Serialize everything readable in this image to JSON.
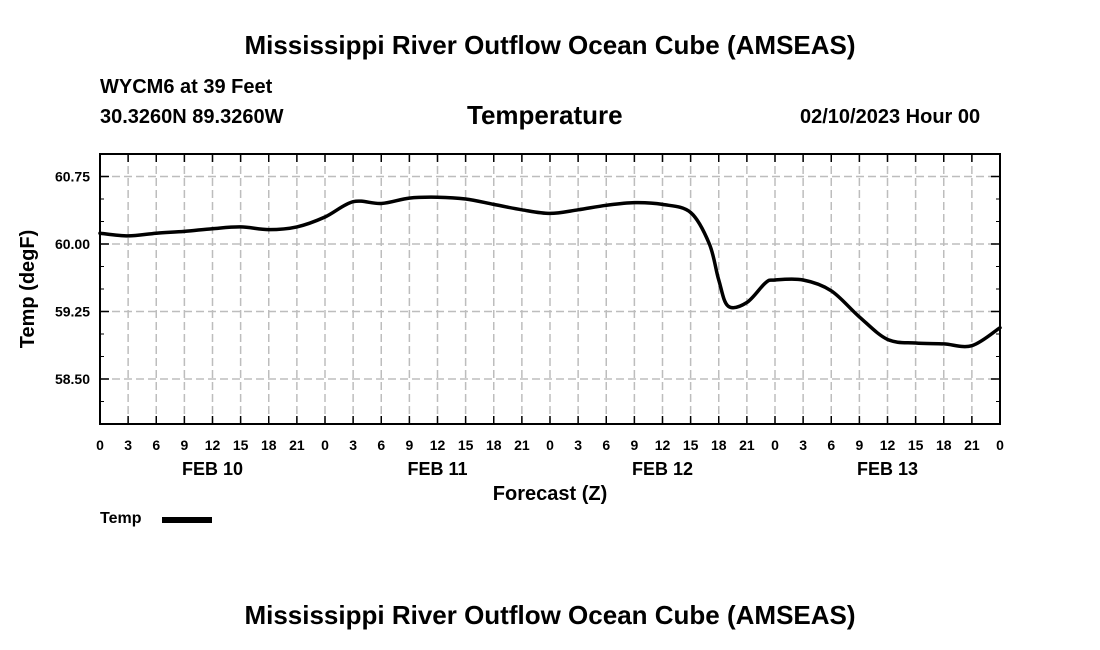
{
  "header": {
    "title_top": "Mississippi River Outflow Ocean Cube (AMSEAS)",
    "station_line": "WYCM6 at 39 Feet",
    "coords_line": "30.3260N  89.3260W",
    "subtitle": "Temperature",
    "datetime": "02/10/2023 Hour 00"
  },
  "footer": {
    "title_bottom": "Mississippi River Outflow Ocean Cube (AMSEAS)"
  },
  "legend": {
    "label": "Temp",
    "color": "#000000"
  },
  "chart_data": {
    "type": "line",
    "title": "Temperature",
    "xlabel": "Forecast (Z)",
    "ylabel": "Temp (degF)",
    "xlim": [
      0,
      96
    ],
    "ylim": [
      58.0,
      61.0
    ],
    "grid": true,
    "y_ticks": [
      "60.75",
      "60.00",
      "59.25",
      "58.50"
    ],
    "x_ticks": [
      "0",
      "3",
      "6",
      "9",
      "12",
      "15",
      "18",
      "21",
      "0",
      "3",
      "6",
      "9",
      "12",
      "15",
      "18",
      "21",
      "0",
      "3",
      "6",
      "9",
      "12",
      "15",
      "18",
      "21",
      "0",
      "3",
      "6",
      "9",
      "12",
      "15",
      "18",
      "21",
      "0"
    ],
    "days": [
      "FEB 10",
      "FEB 11",
      "FEB 12",
      "FEB 13"
    ],
    "series": [
      {
        "name": "Temp",
        "x": [
          0,
          3,
          6,
          9,
          12,
          15,
          18,
          21,
          24,
          27,
          30,
          33,
          36,
          39,
          42,
          45,
          48,
          51,
          54,
          57,
          60,
          63,
          65,
          66,
          67,
          69,
          71,
          72,
          75,
          78,
          81,
          84,
          87,
          90,
          93,
          96
        ],
        "y": [
          60.12,
          60.09,
          60.12,
          60.14,
          60.17,
          60.19,
          60.16,
          60.19,
          60.3,
          60.47,
          60.45,
          60.51,
          60.52,
          60.5,
          60.44,
          60.38,
          60.34,
          60.38,
          60.43,
          60.46,
          60.44,
          60.35,
          60.0,
          59.6,
          59.31,
          59.35,
          59.57,
          59.6,
          59.6,
          59.48,
          59.19,
          58.94,
          58.9,
          58.89,
          58.87,
          59.07
        ]
      }
    ]
  }
}
